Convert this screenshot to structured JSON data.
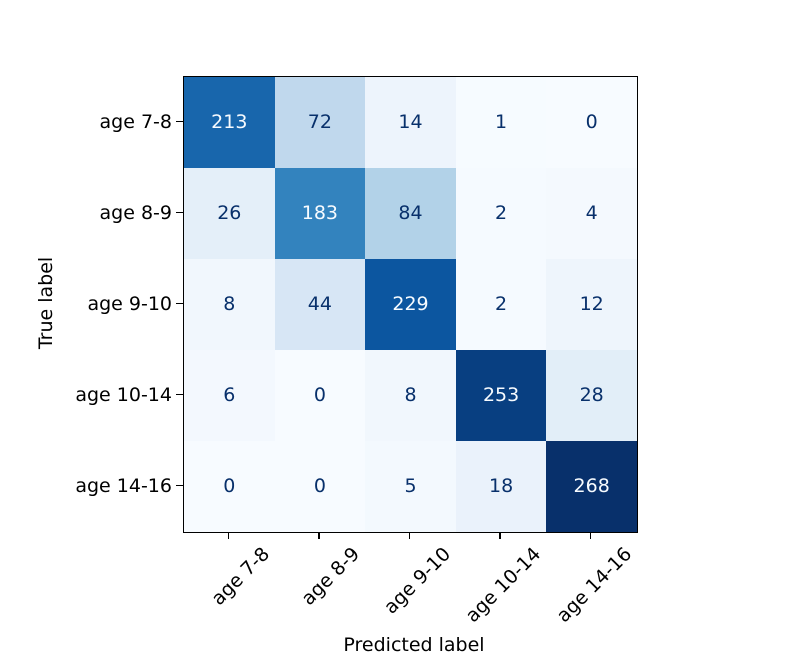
{
  "figure": {
    "background": "#ffffff",
    "spine_color": "#000000",
    "tick_color": "#000000"
  },
  "chart_data": {
    "type": "heatmap",
    "subtype": "confusion-matrix",
    "colormap": "Blues",
    "title": "",
    "xlabel": "Predicted label",
    "ylabel": "True label",
    "x_categories": [
      "age 7-8",
      "age 8-9",
      "age 9-10",
      "age 10-14",
      "age 14-16"
    ],
    "y_categories": [
      "age 7-8",
      "age 8-9",
      "age 9-10",
      "age 10-14",
      "age 14-16"
    ],
    "matrix": [
      [
        213,
        72,
        14,
        1,
        0
      ],
      [
        26,
        183,
        84,
        2,
        4
      ],
      [
        8,
        44,
        229,
        2,
        12
      ],
      [
        6,
        0,
        8,
        253,
        28
      ],
      [
        0,
        0,
        5,
        18,
        268
      ]
    ],
    "vmin": 0,
    "vmax": 268,
    "cell_colors": [
      [
        "#1866ac",
        "#c0d8ed",
        "#edf4fc",
        "#f6fbff",
        "#f7fbff"
      ],
      [
        "#e4eff9",
        "#3383be",
        "#b2d2e8",
        "#f5faff",
        "#f4f9fe"
      ],
      [
        "#f1f7fd",
        "#d7e6f5",
        "#0c56a0",
        "#f5faff",
        "#eef5fc"
      ],
      [
        "#f3f8fe",
        "#f7fbff",
        "#f1f7fd",
        "#083f81",
        "#e2eef8"
      ],
      [
        "#f7fbff",
        "#f7fbff",
        "#f3f9fe",
        "#eaf2fb",
        "#08306b"
      ]
    ],
    "cell_text_colors": [
      [
        "#f7fbff",
        "#08306b",
        "#08306b",
        "#08306b",
        "#08306b"
      ],
      [
        "#08306b",
        "#f7fbff",
        "#08306b",
        "#08306b",
        "#08306b"
      ],
      [
        "#08306b",
        "#08306b",
        "#f7fbff",
        "#08306b",
        "#08306b"
      ],
      [
        "#08306b",
        "#08306b",
        "#08306b",
        "#f7fbff",
        "#08306b"
      ],
      [
        "#08306b",
        "#08306b",
        "#08306b",
        "#08306b",
        "#f7fbff"
      ]
    ],
    "legend": "none",
    "grid": false
  }
}
